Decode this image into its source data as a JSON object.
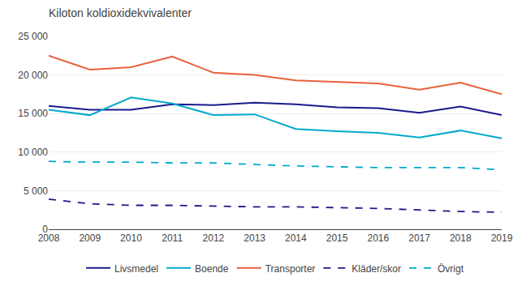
{
  "chart_data": {
    "type": "line",
    "title": "Kiloton koldioxidekvivalenter",
    "x": [
      2008,
      2009,
      2010,
      2011,
      2012,
      2013,
      2014,
      2015,
      2016,
      2017,
      2018,
      2019
    ],
    "series": [
      {
        "name": "Livsmedel",
        "color": "#1a1a8c",
        "line_style": "solid",
        "values": [
          16000,
          15500,
          15500,
          16200,
          16100,
          16400,
          16200,
          15800,
          15700,
          15100,
          15900,
          14800
        ]
      },
      {
        "name": "Boende",
        "color": "#00aacc",
        "line_style": "solid",
        "values": [
          15500,
          14800,
          17100,
          16300,
          14800,
          14900,
          13000,
          12700,
          12500,
          11900,
          12800,
          11800
        ]
      },
      {
        "name": "Transporter",
        "color": "#e8603c",
        "line_style": "solid",
        "values": [
          22500,
          20700,
          21000,
          22400,
          20300,
          20000,
          19300,
          19100,
          18900,
          18100,
          19000,
          17500
        ]
      },
      {
        "name": "Kläder/skor",
        "color": "#1a1a8c",
        "line_style": "dashed",
        "values": [
          3900,
          3300,
          3100,
          3100,
          3000,
          2900,
          2900,
          2800,
          2700,
          2500,
          2300,
          2200
        ]
      },
      {
        "name": "Övrigt",
        "color": "#00aacc",
        "line_style": "dashed",
        "values": [
          8800,
          8700,
          8700,
          8600,
          8600,
          8400,
          8200,
          8100,
          8000,
          8000,
          8000,
          7700
        ]
      }
    ],
    "xlim": [
      2008,
      2019
    ],
    "xticks": [
      2008,
      2009,
      2010,
      2011,
      2012,
      2013,
      2014,
      2015,
      2016,
      2017,
      2018,
      2019
    ],
    "ylim": [
      0,
      25000
    ],
    "yticks": [
      0,
      {
        "value": 5000,
        "label": "5 000"
      },
      {
        "value": 10000,
        "label": "10 000"
      },
      {
        "value": 15000,
        "label": "15 000"
      },
      {
        "value": 20000,
        "label": "20 000"
      },
      {
        "value": 25000,
        "label": "25 000"
      }
    ],
    "grid": true,
    "legend": "bottom"
  }
}
